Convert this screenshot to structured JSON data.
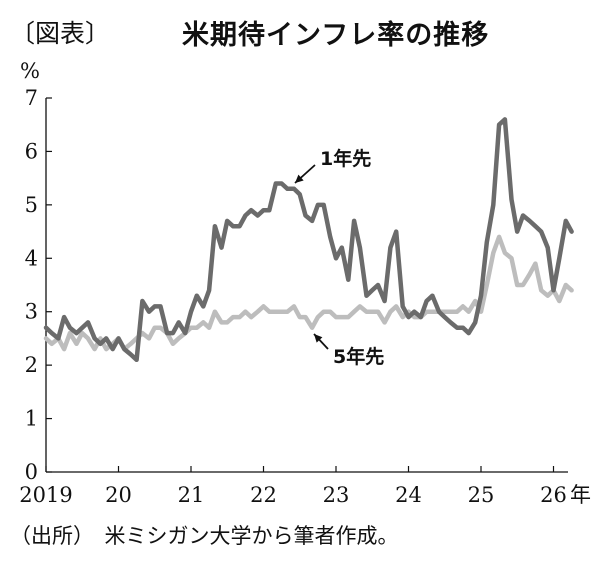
{
  "header": {
    "figure_label": "〔図表〕",
    "title": "米期待インフレ率の推移"
  },
  "source": "（出所）　米ミシガン大学から筆者作成。",
  "chart_data": {
    "type": "line",
    "title": "米期待インフレ率の推移",
    "ylabel": "%",
    "xlabel": "年",
    "ylim": [
      0,
      7
    ],
    "xlim": [
      2019.0,
      2026.2
    ],
    "yticks": [
      "0",
      "1",
      "2",
      "3",
      "4",
      "5",
      "6",
      "7"
    ],
    "xticks": [
      {
        "value": 2019,
        "label": "2019"
      },
      {
        "value": 2020,
        "label": "20"
      },
      {
        "value": 2021,
        "label": "21"
      },
      {
        "value": 2022,
        "label": "22"
      },
      {
        "value": 2023,
        "label": "23"
      },
      {
        "value": 2024,
        "label": "24"
      },
      {
        "value": 2025,
        "label": "25"
      },
      {
        "value": 2026,
        "label": "26"
      }
    ],
    "x_unit_label": "年",
    "grid": false,
    "series": [
      {
        "name": "1年先",
        "color": "#6b6b6b",
        "points": [
          [
            2019.0,
            2.7
          ],
          [
            2019.08,
            2.6
          ],
          [
            2019.17,
            2.5
          ],
          [
            2019.25,
            2.9
          ],
          [
            2019.33,
            2.7
          ],
          [
            2019.42,
            2.6
          ],
          [
            2019.5,
            2.7
          ],
          [
            2019.58,
            2.8
          ],
          [
            2019.67,
            2.5
          ],
          [
            2019.75,
            2.4
          ],
          [
            2019.83,
            2.5
          ],
          [
            2019.92,
            2.3
          ],
          [
            2020.0,
            2.5
          ],
          [
            2020.08,
            2.3
          ],
          [
            2020.17,
            2.2
          ],
          [
            2020.25,
            2.1
          ],
          [
            2020.33,
            3.2
          ],
          [
            2020.42,
            3.0
          ],
          [
            2020.5,
            3.1
          ],
          [
            2020.58,
            3.1
          ],
          [
            2020.67,
            2.6
          ],
          [
            2020.75,
            2.6
          ],
          [
            2020.83,
            2.8
          ],
          [
            2020.92,
            2.6
          ],
          [
            2021.0,
            3.0
          ],
          [
            2021.08,
            3.3
          ],
          [
            2021.17,
            3.1
          ],
          [
            2021.25,
            3.4
          ],
          [
            2021.33,
            4.6
          ],
          [
            2021.42,
            4.2
          ],
          [
            2021.5,
            4.7
          ],
          [
            2021.58,
            4.6
          ],
          [
            2021.67,
            4.6
          ],
          [
            2021.75,
            4.8
          ],
          [
            2021.83,
            4.9
          ],
          [
            2021.92,
            4.8
          ],
          [
            2022.0,
            4.9
          ],
          [
            2022.08,
            4.9
          ],
          [
            2022.17,
            5.4
          ],
          [
            2022.25,
            5.4
          ],
          [
            2022.33,
            5.3
          ],
          [
            2022.42,
            5.3
          ],
          [
            2022.5,
            5.2
          ],
          [
            2022.58,
            4.8
          ],
          [
            2022.67,
            4.7
          ],
          [
            2022.75,
            5.0
          ],
          [
            2022.83,
            5.0
          ],
          [
            2022.92,
            4.4
          ],
          [
            2023.0,
            4.0
          ],
          [
            2023.08,
            4.2
          ],
          [
            2023.17,
            3.6
          ],
          [
            2023.25,
            4.7
          ],
          [
            2023.33,
            4.2
          ],
          [
            2023.42,
            3.3
          ],
          [
            2023.5,
            3.4
          ],
          [
            2023.58,
            3.5
          ],
          [
            2023.67,
            3.2
          ],
          [
            2023.75,
            4.2
          ],
          [
            2023.83,
            4.5
          ],
          [
            2023.92,
            3.1
          ],
          [
            2024.0,
            2.9
          ],
          [
            2024.08,
            3.0
          ],
          [
            2024.17,
            2.9
          ],
          [
            2024.25,
            3.2
          ],
          [
            2024.33,
            3.3
          ],
          [
            2024.42,
            3.0
          ],
          [
            2024.5,
            2.9
          ],
          [
            2024.58,
            2.8
          ],
          [
            2024.67,
            2.7
          ],
          [
            2024.75,
            2.7
          ],
          [
            2024.83,
            2.6
          ],
          [
            2024.92,
            2.8
          ],
          [
            2025.0,
            3.3
          ],
          [
            2025.08,
            4.3
          ],
          [
            2025.17,
            5.0
          ],
          [
            2025.25,
            6.5
          ],
          [
            2025.33,
            6.6
          ],
          [
            2025.42,
            5.1
          ],
          [
            2025.5,
            4.5
          ],
          [
            2025.58,
            4.8
          ],
          [
            2025.67,
            4.7
          ],
          [
            2025.75,
            4.6
          ],
          [
            2025.83,
            4.5
          ],
          [
            2025.92,
            4.2
          ],
          [
            2026.0,
            3.4
          ],
          [
            2026.08,
            4.0
          ],
          [
            2026.17,
            4.7
          ],
          [
            2026.25,
            4.5
          ]
        ]
      },
      {
        "name": "5年先",
        "color": "#bdbdbd",
        "points": [
          [
            2019.0,
            2.5
          ],
          [
            2019.08,
            2.4
          ],
          [
            2019.17,
            2.5
          ],
          [
            2019.25,
            2.3
          ],
          [
            2019.33,
            2.6
          ],
          [
            2019.42,
            2.4
          ],
          [
            2019.5,
            2.6
          ],
          [
            2019.58,
            2.5
          ],
          [
            2019.67,
            2.3
          ],
          [
            2019.75,
            2.5
          ],
          [
            2019.83,
            2.3
          ],
          [
            2019.92,
            2.4
          ],
          [
            2020.0,
            2.5
          ],
          [
            2020.08,
            2.3
          ],
          [
            2020.17,
            2.4
          ],
          [
            2020.25,
            2.5
          ],
          [
            2020.33,
            2.6
          ],
          [
            2020.42,
            2.5
          ],
          [
            2020.5,
            2.7
          ],
          [
            2020.58,
            2.7
          ],
          [
            2020.67,
            2.6
          ],
          [
            2020.75,
            2.4
          ],
          [
            2020.83,
            2.5
          ],
          [
            2020.92,
            2.6
          ],
          [
            2021.0,
            2.7
          ],
          [
            2021.08,
            2.7
          ],
          [
            2021.17,
            2.8
          ],
          [
            2021.25,
            2.7
          ],
          [
            2021.33,
            3.0
          ],
          [
            2021.42,
            2.8
          ],
          [
            2021.5,
            2.8
          ],
          [
            2021.58,
            2.9
          ],
          [
            2021.67,
            2.9
          ],
          [
            2021.75,
            3.0
          ],
          [
            2021.83,
            2.9
          ],
          [
            2021.92,
            3.0
          ],
          [
            2022.0,
            3.1
          ],
          [
            2022.08,
            3.0
          ],
          [
            2022.17,
            3.0
          ],
          [
            2022.25,
            3.0
          ],
          [
            2022.33,
            3.0
          ],
          [
            2022.42,
            3.1
          ],
          [
            2022.5,
            2.9
          ],
          [
            2022.58,
            2.9
          ],
          [
            2022.67,
            2.7
          ],
          [
            2022.75,
            2.9
          ],
          [
            2022.83,
            3.0
          ],
          [
            2022.92,
            3.0
          ],
          [
            2023.0,
            2.9
          ],
          [
            2023.08,
            2.9
          ],
          [
            2023.17,
            2.9
          ],
          [
            2023.25,
            3.0
          ],
          [
            2023.33,
            3.1
          ],
          [
            2023.42,
            3.0
          ],
          [
            2023.5,
            3.0
          ],
          [
            2023.58,
            3.0
          ],
          [
            2023.67,
            2.8
          ],
          [
            2023.75,
            3.0
          ],
          [
            2023.83,
            3.1
          ],
          [
            2023.92,
            2.9
          ],
          [
            2024.0,
            3.0
          ],
          [
            2024.08,
            2.9
          ],
          [
            2024.17,
            2.9
          ],
          [
            2024.25,
            3.0
          ],
          [
            2024.33,
            3.0
          ],
          [
            2024.42,
            3.0
          ],
          [
            2024.5,
            3.0
          ],
          [
            2024.58,
            3.0
          ],
          [
            2024.67,
            3.0
          ],
          [
            2024.75,
            3.1
          ],
          [
            2024.83,
            3.0
          ],
          [
            2024.92,
            3.2
          ],
          [
            2025.0,
            3.0
          ],
          [
            2025.08,
            3.5
          ],
          [
            2025.17,
            4.1
          ],
          [
            2025.25,
            4.4
          ],
          [
            2025.33,
            4.1
          ],
          [
            2025.42,
            4.0
          ],
          [
            2025.5,
            3.5
          ],
          [
            2025.58,
            3.5
          ],
          [
            2025.67,
            3.7
          ],
          [
            2025.75,
            3.9
          ],
          [
            2025.83,
            3.4
          ],
          [
            2025.92,
            3.3
          ],
          [
            2026.0,
            3.4
          ],
          [
            2026.08,
            3.2
          ],
          [
            2026.17,
            3.5
          ],
          [
            2026.25,
            3.4
          ]
        ]
      }
    ],
    "annotations": [
      {
        "series": "1年先",
        "text": "1年先"
      },
      {
        "series": "5年先",
        "text": "5年先"
      }
    ]
  }
}
